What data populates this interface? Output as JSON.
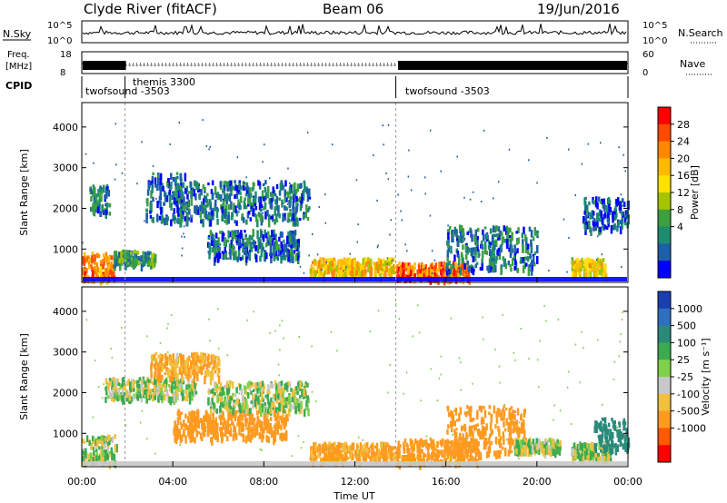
{
  "header": {
    "station": "Clyde River (fitACF)",
    "beam": "Beam 06",
    "date": "19/Jun/2016"
  },
  "left_labels": {
    "nsky": "N.Sky",
    "nsky_ticks": [
      "10^5",
      "10^0"
    ],
    "freq": "Freq.",
    "freq_unit": "[MHz]",
    "freq_ticks": [
      "18",
      "8"
    ],
    "cpid": "CPID"
  },
  "right_labels": {
    "nsearch": "N.Search",
    "nsearch_ticks": [
      "10^5",
      "10^0"
    ],
    "nave": "Nave",
    "nave_ticks": [
      "60",
      "0"
    ]
  },
  "cpid_segments": [
    {
      "label": "twofsound -3503",
      "start_hr": 0.0,
      "end_hr": 1.9
    },
    {
      "label": "themis 3300",
      "start_hr": 1.9,
      "end_hr": 13.8
    },
    {
      "label": "twofsound -3503",
      "start_hr": 13.8,
      "end_hr": 24.0
    }
  ],
  "chart_data": [
    {
      "type": "heatmap",
      "name": "power",
      "ylabel": "Slant Range [km]",
      "yticks": [
        1000,
        2000,
        3000,
        4000
      ],
      "ylim": [
        180,
        4600
      ],
      "xlim": [
        0,
        24
      ],
      "colorbar": {
        "label": "Power [dB]",
        "ticks": [
          "28",
          "24",
          "20",
          "16",
          "12",
          "8",
          "4"
        ],
        "colors": [
          "#ff0000",
          "#ff4b00",
          "#ff8800",
          "#ffba00",
          "#ffe000",
          "#a6c400",
          "#3ca040",
          "#1e8c6e",
          "#1d5fa8",
          "#0000ff"
        ]
      },
      "scatter_bands": [
        {
          "t0": 0.0,
          "t1": 1.4,
          "r0": 300,
          "r1": 950,
          "v": 24
        },
        {
          "t0": 0.3,
          "t1": 1.2,
          "r0": 1900,
          "r1": 2600,
          "v": 8
        },
        {
          "t0": 1.4,
          "t1": 3.2,
          "r0": 650,
          "r1": 1000,
          "v": 10
        },
        {
          "t0": 2.8,
          "t1": 4.6,
          "r0": 1700,
          "r1": 2900,
          "v": 6
        },
        {
          "t0": 4.0,
          "t1": 10.0,
          "r0": 1700,
          "r1": 2700,
          "v": 8
        },
        {
          "t0": 5.5,
          "t1": 9.5,
          "r0": 800,
          "r1": 1500,
          "v": 7
        },
        {
          "t0": 10.0,
          "t1": 13.7,
          "r0": 400,
          "r1": 800,
          "v": 20
        },
        {
          "t0": 13.8,
          "t1": 17.0,
          "r0": 300,
          "r1": 700,
          "v": 26
        },
        {
          "t0": 16.0,
          "t1": 20.0,
          "r0": 500,
          "r1": 1600,
          "v": 8
        },
        {
          "t0": 21.5,
          "t1": 23.0,
          "r0": 400,
          "r1": 800,
          "v": 18
        },
        {
          "t0": 22.0,
          "t1": 24.0,
          "r0": 1500,
          "r1": 2300,
          "v": 6
        }
      ]
    },
    {
      "type": "heatmap",
      "name": "velocity",
      "xlabel": "Time UT",
      "ylabel": "Slant Range [km]",
      "xticks": [
        "00:00",
        "04:00",
        "08:00",
        "12:00",
        "16:00",
        "20:00",
        "00:00"
      ],
      "yticks": [
        1000,
        2000,
        3000,
        4000
      ],
      "ylim": [
        180,
        4600
      ],
      "xlim": [
        0,
        24
      ],
      "colorbar": {
        "label": "Velocity [m s⁻¹]",
        "ticks": [
          "1000",
          "500",
          "100",
          "25",
          "-25",
          "-100",
          "-500",
          "-1000"
        ],
        "colors": [
          "#1a3fb0",
          "#2e6fc0",
          "#2a8a7a",
          "#3caa50",
          "#7fd04a",
          "#c8c8c8",
          "#f0c040",
          "#ff9a20",
          "#ff5a00",
          "#ff0000"
        ]
      },
      "scatter_bands": [
        {
          "t0": 0.0,
          "t1": 1.5,
          "r0": 300,
          "r1": 1000,
          "v": 0
        },
        {
          "t0": 1.0,
          "t1": 5.0,
          "r0": 1900,
          "r1": 2400,
          "v": 0
        },
        {
          "t0": 3.0,
          "t1": 6.0,
          "r0": 2400,
          "r1": 3000,
          "v": -120
        },
        {
          "t0": 4.0,
          "t1": 9.0,
          "r0": 900,
          "r1": 1600,
          "v": -200
        },
        {
          "t0": 5.5,
          "t1": 10.0,
          "r0": 1600,
          "r1": 2300,
          "v": 0
        },
        {
          "t0": 10.0,
          "t1": 13.7,
          "r0": 400,
          "r1": 800,
          "v": -150
        },
        {
          "t0": 13.8,
          "t1": 17.5,
          "r0": 300,
          "r1": 900,
          "v": -200
        },
        {
          "t0": 16.0,
          "t1": 19.5,
          "r0": 500,
          "r1": 1700,
          "v": -300
        },
        {
          "t0": 19.0,
          "t1": 21.0,
          "r0": 600,
          "r1": 900,
          "v": 0
        },
        {
          "t0": 21.5,
          "t1": 23.2,
          "r0": 400,
          "r1": 800,
          "v": 0
        },
        {
          "t0": 22.5,
          "t1": 24.0,
          "r0": 600,
          "r1": 1400,
          "v": 200
        }
      ]
    }
  ]
}
